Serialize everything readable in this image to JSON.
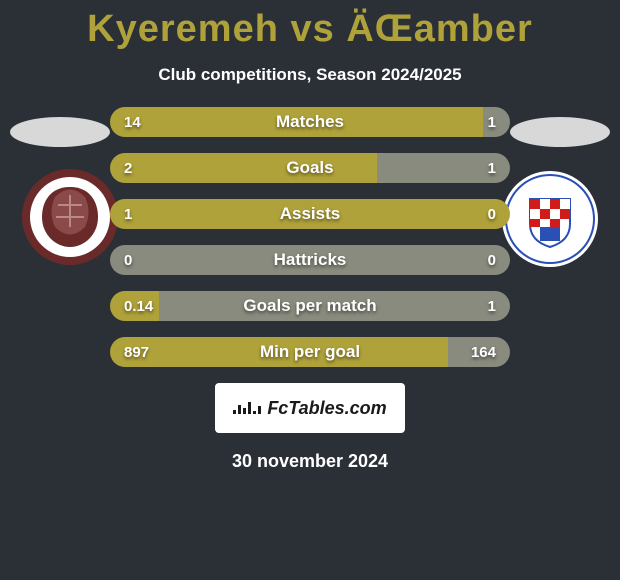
{
  "title": "Kyeremeh vs ÄŒamber",
  "subtitle": "Club competitions, Season 2024/2025",
  "date": "30 november 2024",
  "footer_text": "FcTables.com",
  "colors": {
    "background": "#2a3036",
    "accent_left": "#b0a23a",
    "accent_right": "#888b7d",
    "text": "#ffffff"
  },
  "rows": [
    {
      "label": "Matches",
      "left": "14",
      "right": "1",
      "left_pct": 93.3,
      "right_pct": 6.7
    },
    {
      "label": "Goals",
      "left": "2",
      "right": "1",
      "left_pct": 66.7,
      "right_pct": 33.3
    },
    {
      "label": "Assists",
      "left": "1",
      "right": "0",
      "left_pct": 100,
      "right_pct": 0
    },
    {
      "label": "Hattricks",
      "left": "0",
      "right": "0",
      "left_pct": 50,
      "right_pct": 50,
      "neutral": true
    },
    {
      "label": "Goals per match",
      "left": "0.14",
      "right": "1",
      "left_pct": 12.3,
      "right_pct": 87.7
    },
    {
      "label": "Min per goal",
      "left": "897",
      "right": "164",
      "left_pct": 84.5,
      "right_pct": 15.5
    }
  ],
  "mini_chart_bars": [
    4,
    9,
    6,
    12,
    3,
    8
  ],
  "team_left": {
    "name": "FK Sarajevo",
    "ring_color": "#6b2a2a",
    "text_color": "#ffffff",
    "year": "1946"
  },
  "team_right": {
    "name": "HŠK Zrinjski Mostar",
    "ring_color": "#ffffff",
    "inner_colors": [
      "#d11b1b",
      "#2a4fb5"
    ],
    "year": "1905"
  }
}
